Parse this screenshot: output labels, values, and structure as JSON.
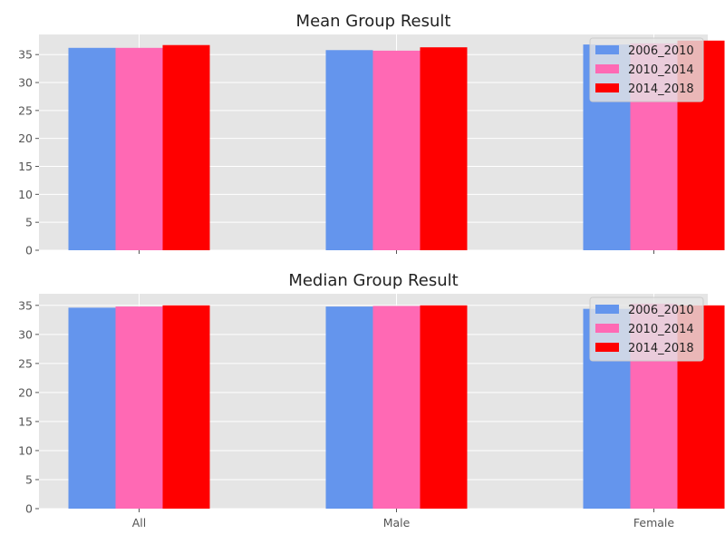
{
  "chart_data": [
    {
      "type": "bar",
      "title": "Mean Group Result",
      "xlabel": "",
      "ylabel": "",
      "categories": [
        "All",
        "Male",
        "Female"
      ],
      "ylim": [
        0,
        38.6
      ],
      "yticks": [
        0,
        5,
        10,
        15,
        20,
        25,
        30,
        35
      ],
      "show_xtick_labels": false,
      "grid": true,
      "legend_position": "top-right",
      "series": [
        {
          "name": "2006_2010",
          "color": "#6495ed",
          "values": [
            36.2,
            35.8,
            36.8
          ]
        },
        {
          "name": "2010_2014",
          "color": "#ff69b4",
          "values": [
            36.2,
            35.7,
            37.0
          ]
        },
        {
          "name": "2014_2018",
          "color": "#ff0000",
          "values": [
            36.7,
            36.3,
            37.5
          ]
        }
      ]
    },
    {
      "type": "bar",
      "title": "Median Group Result",
      "xlabel": "",
      "ylabel": "",
      "categories": [
        "All",
        "Male",
        "Female"
      ],
      "ylim": [
        0,
        37.0
      ],
      "yticks": [
        0,
        5,
        10,
        15,
        20,
        25,
        30,
        35
      ],
      "show_xtick_labels": true,
      "grid": true,
      "legend_position": "top-right",
      "series": [
        {
          "name": "2006_2010",
          "color": "#6495ed",
          "values": [
            34.6,
            34.8,
            34.4
          ]
        },
        {
          "name": "2010_2014",
          "color": "#ff69b4",
          "values": [
            34.8,
            34.9,
            35.3
          ]
        },
        {
          "name": "2014_2018",
          "color": "#ff0000",
          "values": [
            35.0,
            35.0,
            35.0
          ]
        }
      ]
    }
  ]
}
